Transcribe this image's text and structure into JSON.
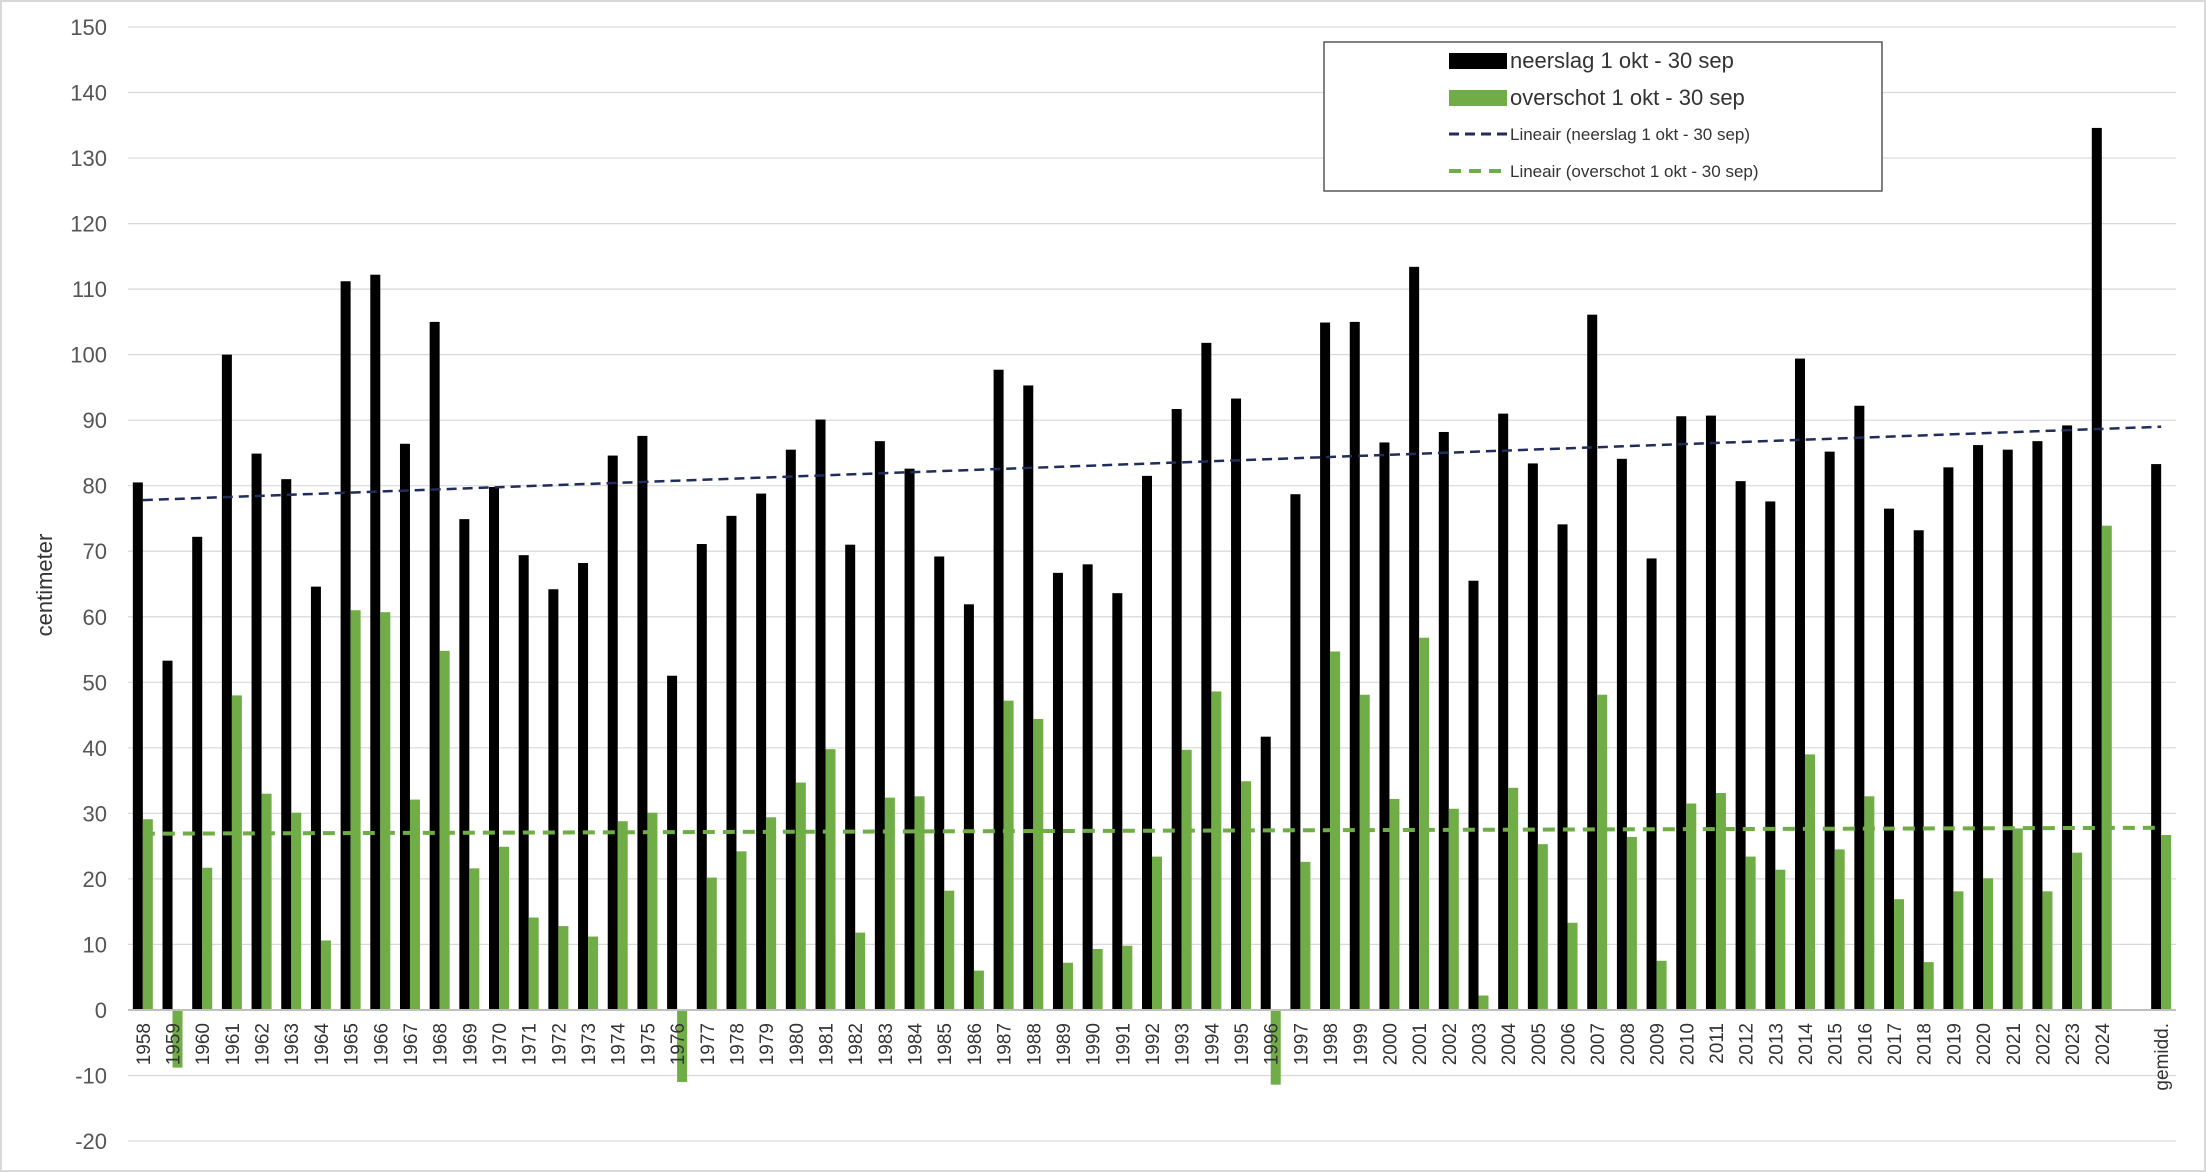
{
  "chart_data": {
    "type": "bar",
    "ylabel": "centimeter",
    "ylim": [
      -20,
      150
    ],
    "y_ticks": [
      -20,
      -10,
      0,
      10,
      20,
      30,
      40,
      50,
      60,
      70,
      80,
      90,
      100,
      110,
      120,
      130,
      140,
      150
    ],
    "grid": true,
    "legend_position": "top-right",
    "categories": [
      "1958",
      "1959",
      "1960",
      "1961",
      "1962",
      "1963",
      "1964",
      "1965",
      "1966",
      "1967",
      "1968",
      "1969",
      "1970",
      "1971",
      "1972",
      "1973",
      "1974",
      "1975",
      "1976",
      "1977",
      "1978",
      "1979",
      "1980",
      "1981",
      "1982",
      "1983",
      "1984",
      "1985",
      "1986",
      "1987",
      "1988",
      "1989",
      "1990",
      "1991",
      "1992",
      "1993",
      "1994",
      "1995",
      "1996",
      "1997",
      "1998",
      "1999",
      "2000",
      "2001",
      "2002",
      "2003",
      "2004",
      "2005",
      "2006",
      "2007",
      "2008",
      "2009",
      "2010",
      "2011",
      "2012",
      "2013",
      "2014",
      "2015",
      "2016",
      "2017",
      "2018",
      "2019",
      "2020",
      "2021",
      "2022",
      "2023",
      "2024",
      "",
      "gemidd."
    ],
    "series": [
      {
        "name": "neerslag 1 okt - 30 sep",
        "color": "#000000",
        "values": [
          80.5,
          53.3,
          72.2,
          100,
          84.9,
          81,
          64.6,
          111.2,
          112.2,
          86.4,
          105,
          74.9,
          79.8,
          69.4,
          64.2,
          68.2,
          84.6,
          87.6,
          51,
          71.1,
          75.4,
          78.8,
          85.5,
          90.1,
          71,
          86.8,
          82.6,
          69.2,
          61.9,
          97.7,
          95.3,
          66.7,
          68,
          63.6,
          81.5,
          91.7,
          101.8,
          93.3,
          41.7,
          78.7,
          104.9,
          105,
          86.6,
          113.4,
          88.2,
          65.5,
          91,
          83.4,
          74.1,
          106.1,
          84.1,
          68.9,
          90.6,
          90.7,
          80.7,
          77.6,
          99.4,
          85.2,
          92.2,
          76.5,
          73.2,
          82.8,
          86.2,
          85.5,
          86.8,
          89.2,
          134.6,
          null,
          83.3
        ]
      },
      {
        "name": "overschot 1 okt - 30 sep",
        "color": "#70ad47",
        "values": [
          29.1,
          -8.8,
          21.7,
          48,
          33,
          30.1,
          10.6,
          61,
          60.7,
          32.1,
          54.8,
          21.6,
          24.9,
          14.1,
          12.8,
          11.2,
          28.8,
          30.1,
          -11,
          20.2,
          24.2,
          29.4,
          34.7,
          39.8,
          11.8,
          32.4,
          32.6,
          18.2,
          6,
          47.2,
          44.4,
          7.2,
          9.3,
          9.8,
          23.4,
          39.7,
          48.6,
          34.9,
          -11.4,
          22.6,
          54.7,
          48.1,
          32.2,
          56.8,
          30.7,
          2.2,
          33.9,
          25.3,
          13.3,
          48.1,
          26.4,
          7.5,
          31.5,
          33.1,
          23.4,
          21.4,
          39,
          24.5,
          32.6,
          16.9,
          7.3,
          18.1,
          20.1,
          27.7,
          18.1,
          24,
          73.9,
          null,
          26.7
        ]
      }
    ],
    "trendlines": [
      {
        "name": "Lineair (neerslag 1 okt - 30 sep)",
        "color": "#1f2d5a",
        "start_value": 77.8,
        "end_value": 89.0
      },
      {
        "name": "Lineair (overschot 1 okt - 30 sep)",
        "color": "#70ad47",
        "start_value": 26.9,
        "end_value": 27.8
      }
    ]
  }
}
